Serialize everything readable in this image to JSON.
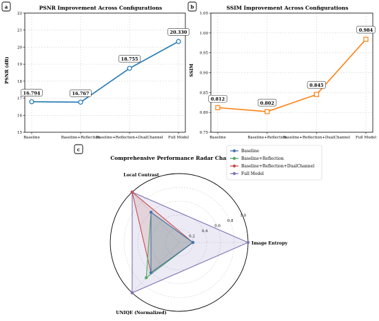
{
  "panels": {
    "a": "a",
    "b": "b",
    "c": "c"
  },
  "chart_data": [
    {
      "type": "line",
      "title": "PSNR Improvement Across Configurations",
      "xlabel": "",
      "ylabel": "PSNR (dB)",
      "categories": [
        "Baseline",
        "Baseline+Reflection",
        "Baseline+Reflection+DualChannel",
        "Full Model"
      ],
      "values": [
        16.794,
        16.767,
        18.755,
        20.33
      ],
      "value_labels": [
        "16.794",
        "16.767",
        "18.755",
        "20.330"
      ],
      "ylim": [
        15,
        22
      ],
      "yticks": [
        "15",
        "16",
        "17",
        "18",
        "19",
        "20",
        "21",
        "22"
      ],
      "color": "#1f77b4",
      "marker": "circle",
      "grid": true
    },
    {
      "type": "line",
      "title": "SSIM Improvement Across Configurations",
      "xlabel": "",
      "ylabel": "SSIM",
      "categories": [
        "Baseline",
        "Baseline+Reflection",
        "Baseline+Reflection+DualChannel",
        "Full Model"
      ],
      "values": [
        0.812,
        0.802,
        0.845,
        0.984
      ],
      "value_labels": [
        "0.812",
        "0.802",
        "0.845",
        "0.984"
      ],
      "ylim": [
        0.75,
        1.05
      ],
      "yticks": [
        "0.75",
        "0.80",
        "0.85",
        "0.90",
        "0.95",
        "1.00",
        "1.05"
      ],
      "color": "#ff7f0e",
      "marker": "square",
      "grid": true
    },
    {
      "type": "radar",
      "title": "Comprehensive Performance Radar Chart",
      "axes": [
        "Image Entropy",
        "Local Contrast",
        "UNIQE (Normalized)"
      ],
      "rticks": [
        "0.2",
        "0.4",
        "0.6",
        "0.8",
        "1.0"
      ],
      "rlim": [
        0,
        1
      ],
      "legend_position": "top-right",
      "series": [
        {
          "name": "Baseline",
          "values": [
            0.2,
            0.6,
            0.6
          ],
          "color": "#4c72b0"
        },
        {
          "name": "Baseline+Reflection",
          "values": [
            0.2,
            0.6,
            0.7
          ],
          "color": "#55a868"
        },
        {
          "name": "Baseline+Reflection+DualChannel",
          "values": [
            0.2,
            1.0,
            0.6
          ],
          "color": "#c44e52"
        },
        {
          "name": "Full Model",
          "values": [
            1.0,
            1.0,
            1.0
          ],
          "color": "#8172b3"
        }
      ],
      "grid": true
    }
  ]
}
